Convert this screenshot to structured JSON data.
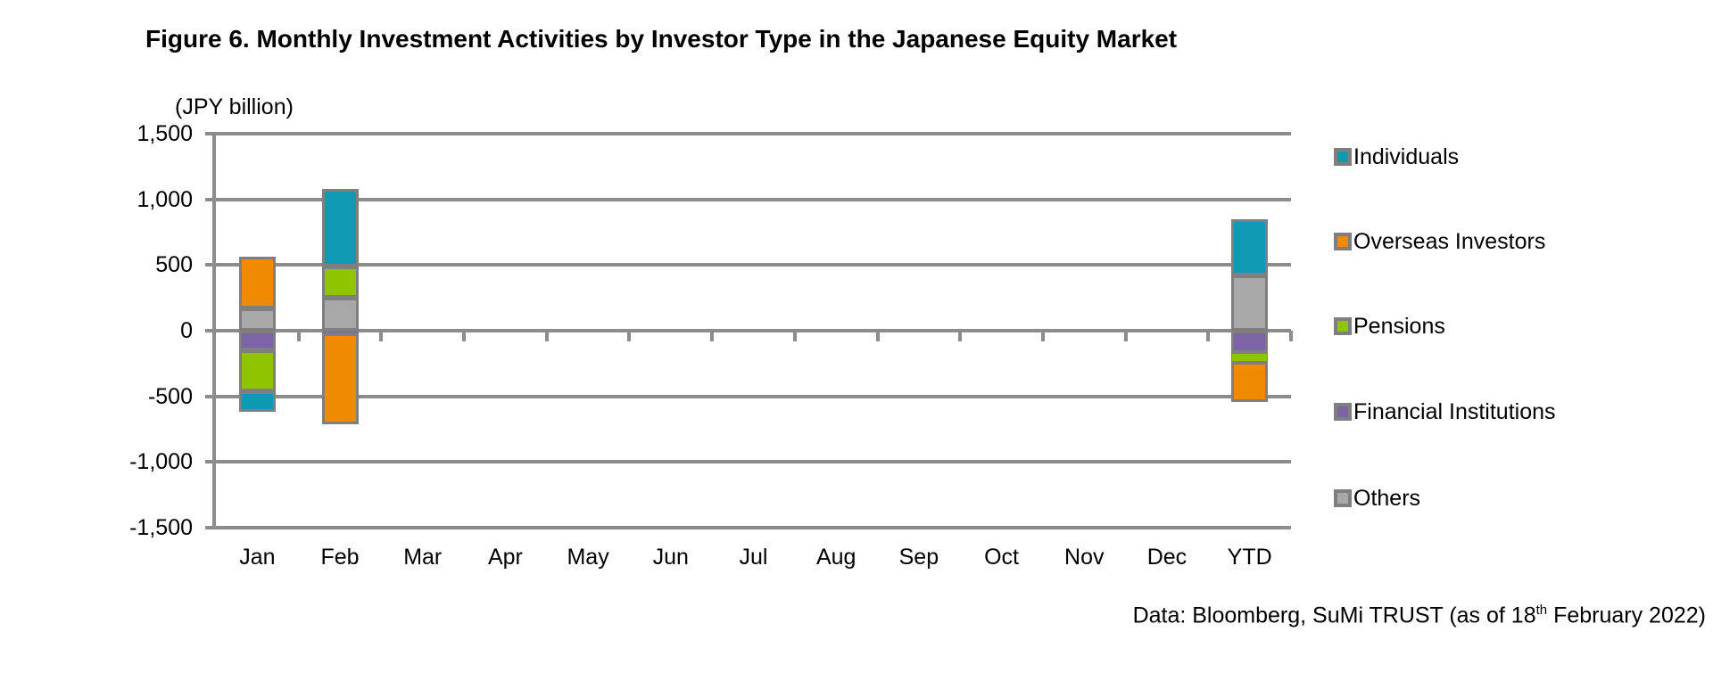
{
  "title": "Figure 6. Monthly Investment Activities by Investor Type in the Japanese Equity Market",
  "axis_unit_label": "(JPY billion)",
  "footer": {
    "prefix": "Data: Bloomberg, SuMi TRUST (as of 18",
    "superscript": "th",
    "suffix": " February 2022)"
  },
  "colors": {
    "gridline": "#8C8C8C",
    "bar_border": "#7F7F7F",
    "text": "#000000",
    "background": "#FFFFFF"
  },
  "chart_data": {
    "type": "bar",
    "stacked": true,
    "title": "Figure 6. Monthly Investment Activities by Investor Type in the Japanese Equity Market",
    "xlabel": "",
    "ylabel": "(JPY billion)",
    "categories": [
      "Jan",
      "Feb",
      "Mar",
      "Apr",
      "May",
      "Jun",
      "Jul",
      "Aug",
      "Sep",
      "Oct",
      "Nov",
      "Dec",
      "YTD"
    ],
    "ylim": [
      -1500,
      1500
    ],
    "ytick_step": 500,
    "ytick_labels": [
      "1,500",
      "1,000",
      "500",
      "0",
      "-500",
      "-1,000",
      "-1,500"
    ],
    "grid": true,
    "legend_position": "right",
    "stack_order": [
      "Others",
      "Financial Institutions",
      "Pensions",
      "Overseas Investors",
      "Individuals"
    ],
    "series": [
      {
        "name": "Individuals",
        "color": "#0F99B2",
        "values": [
          -160,
          590,
          null,
          null,
          null,
          null,
          null,
          null,
          null,
          null,
          null,
          null,
          430
        ]
      },
      {
        "name": "Overseas Investors",
        "color": "#F08A00",
        "values": [
          390,
          -690,
          null,
          null,
          null,
          null,
          null,
          null,
          null,
          null,
          null,
          null,
          -300
        ]
      },
      {
        "name": "Pensions",
        "color": "#8FC400",
        "values": [
          -310,
          240,
          null,
          null,
          null,
          null,
          null,
          null,
          null,
          null,
          null,
          null,
          -70
        ]
      },
      {
        "name": "Financial Institutions",
        "color": "#7B63A5",
        "values": [
          -150,
          -20,
          null,
          null,
          null,
          null,
          null,
          null,
          null,
          null,
          null,
          null,
          -170
        ]
      },
      {
        "name": "Others",
        "color": "#A8A8A8",
        "values": [
          170,
          250,
          null,
          null,
          null,
          null,
          null,
          null,
          null,
          null,
          null,
          null,
          420
        ]
      }
    ]
  }
}
